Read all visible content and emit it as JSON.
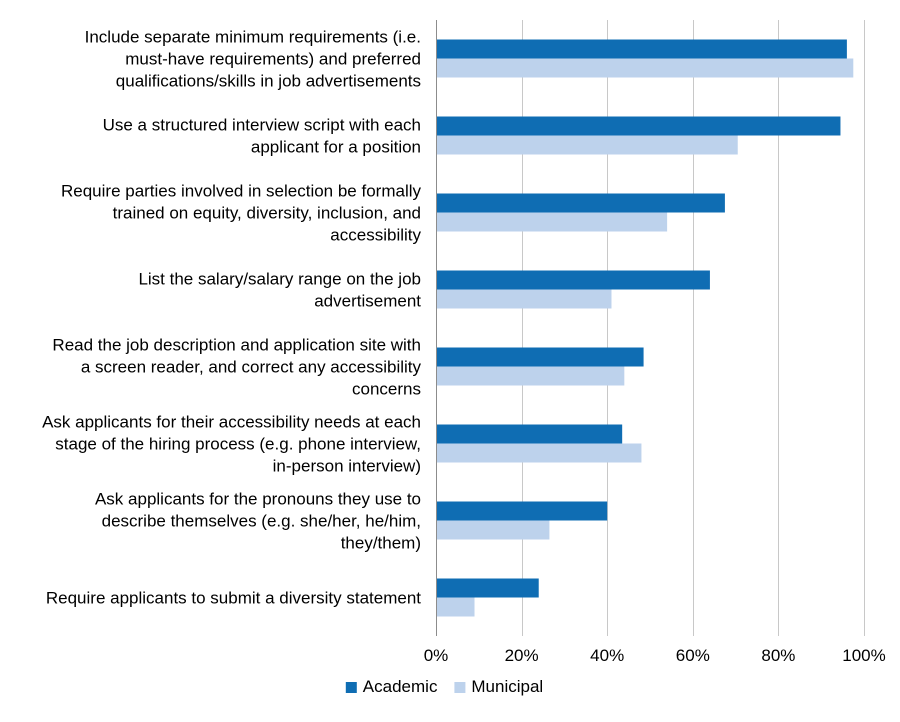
{
  "chart_data": {
    "type": "bar",
    "orientation": "horizontal",
    "title": "",
    "xlabel": "",
    "ylabel": "",
    "categories": [
      "Include separate minimum requirements (i.e. must-have requirements) and preferred qualifications/skills in job advertisements",
      "Use a structured interview script with each applicant for a position",
      "Require parties involved in selection be formally trained on equity, diversity, inclusion, and accessibility",
      "List the salary/salary range on the job advertisement",
      "Read the job description and application site with a screen reader, and correct any accessibility concerns",
      "Ask applicants for their accessibility needs at each stage of the hiring process (e.g. phone interview, in-person interview)",
      "Ask applicants for the pronouns they use to describe themselves (e.g. she/her, he/him, they/them)",
      "Require applicants to submit a diversity statement"
    ],
    "category_lines": [
      [
        "Include separate minimum requirements (i.e.",
        "must-have requirements) and preferred",
        "qualifications/skills in job advertisements"
      ],
      [
        "Use a structured interview script with each",
        "applicant for a position"
      ],
      [
        "Require parties involved in selection be formally",
        "trained on equity, diversity, inclusion, and",
        "accessibility"
      ],
      [
        "List the salary/salary range on the job",
        "advertisement"
      ],
      [
        "Read the job description and application site with",
        "a screen reader, and correct any accessibility",
        "concerns"
      ],
      [
        "Ask applicants for their accessibility needs at each",
        "stage of the hiring process (e.g. phone interview,",
        "in-person interview)"
      ],
      [
        "Ask applicants for the pronouns they use to",
        "describe themselves (e.g. she/her, he/him,",
        "they/them)"
      ],
      [
        "Require applicants to submit a diversity statement"
      ]
    ],
    "series": [
      {
        "name": "Academic",
        "color": "#0f6db3",
        "values": [
          96,
          94.5,
          67.5,
          64,
          48.5,
          43.5,
          40,
          24
        ]
      },
      {
        "name": "Municipal",
        "color": "#bdd2ec",
        "values": [
          97.5,
          70.5,
          54,
          41,
          44,
          48,
          26.5,
          9
        ]
      }
    ],
    "xlim": [
      0,
      100
    ],
    "xticks": [
      0,
      20,
      40,
      60,
      80,
      100
    ],
    "xtick_labels": [
      "0%",
      "20%",
      "40%",
      "60%",
      "80%",
      "100%"
    ],
    "grid": true,
    "legend_position": "bottom"
  }
}
